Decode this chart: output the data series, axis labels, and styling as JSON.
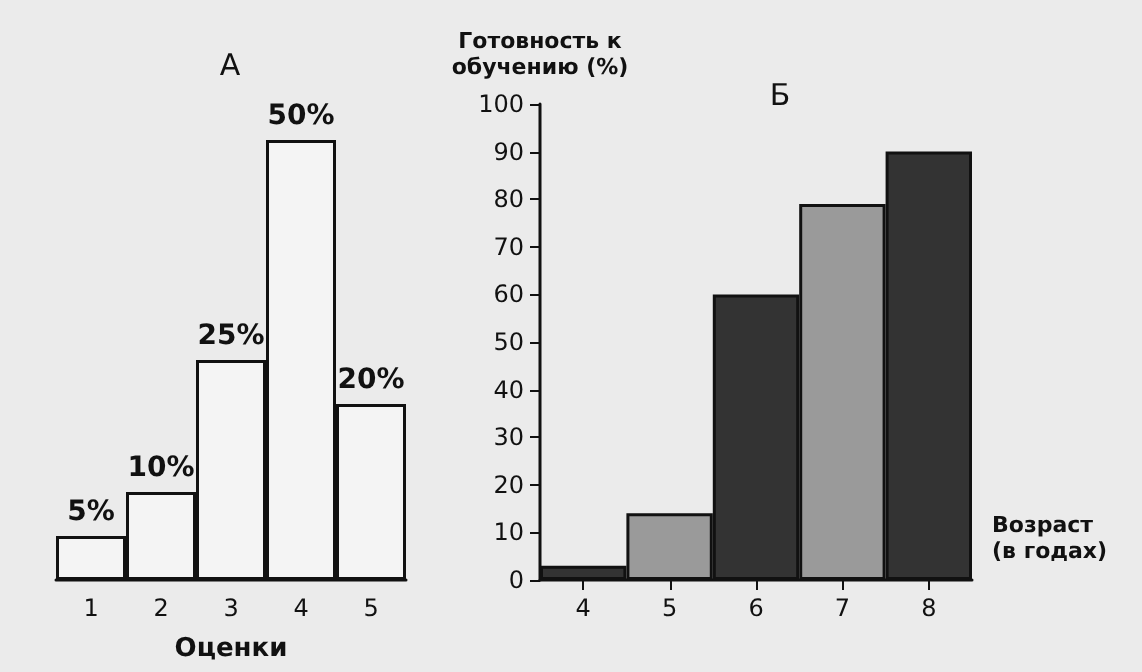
{
  "chart_data": [
    {
      "type": "bar",
      "title": "А",
      "xlabel": "Оценки",
      "categories": [
        "1",
        "2",
        "3",
        "4",
        "5"
      ],
      "values": [
        5,
        10,
        25,
        50,
        20
      ],
      "color": "#f4f4f4",
      "value_labels": [
        "5%",
        "10%",
        "25%",
        "50%",
        "20%"
      ],
      "grid": false
    },
    {
      "type": "bar",
      "title": "Б",
      "xlabel": "Возраст (в годах)",
      "ylabel": "Готовность к обучению (%)",
      "categories": [
        "4",
        "5",
        "6",
        "7",
        "8"
      ],
      "values": [
        3,
        14,
        60,
        79,
        90
      ],
      "colors": [
        "#333333",
        "#9a9a9a",
        "#333333",
        "#9a9a9a",
        "#333333"
      ],
      "ylim": [
        0,
        100
      ],
      "yticks": [
        0,
        10,
        20,
        30,
        40,
        50,
        60,
        70,
        80,
        90,
        100
      ],
      "grid": false
    }
  ]
}
